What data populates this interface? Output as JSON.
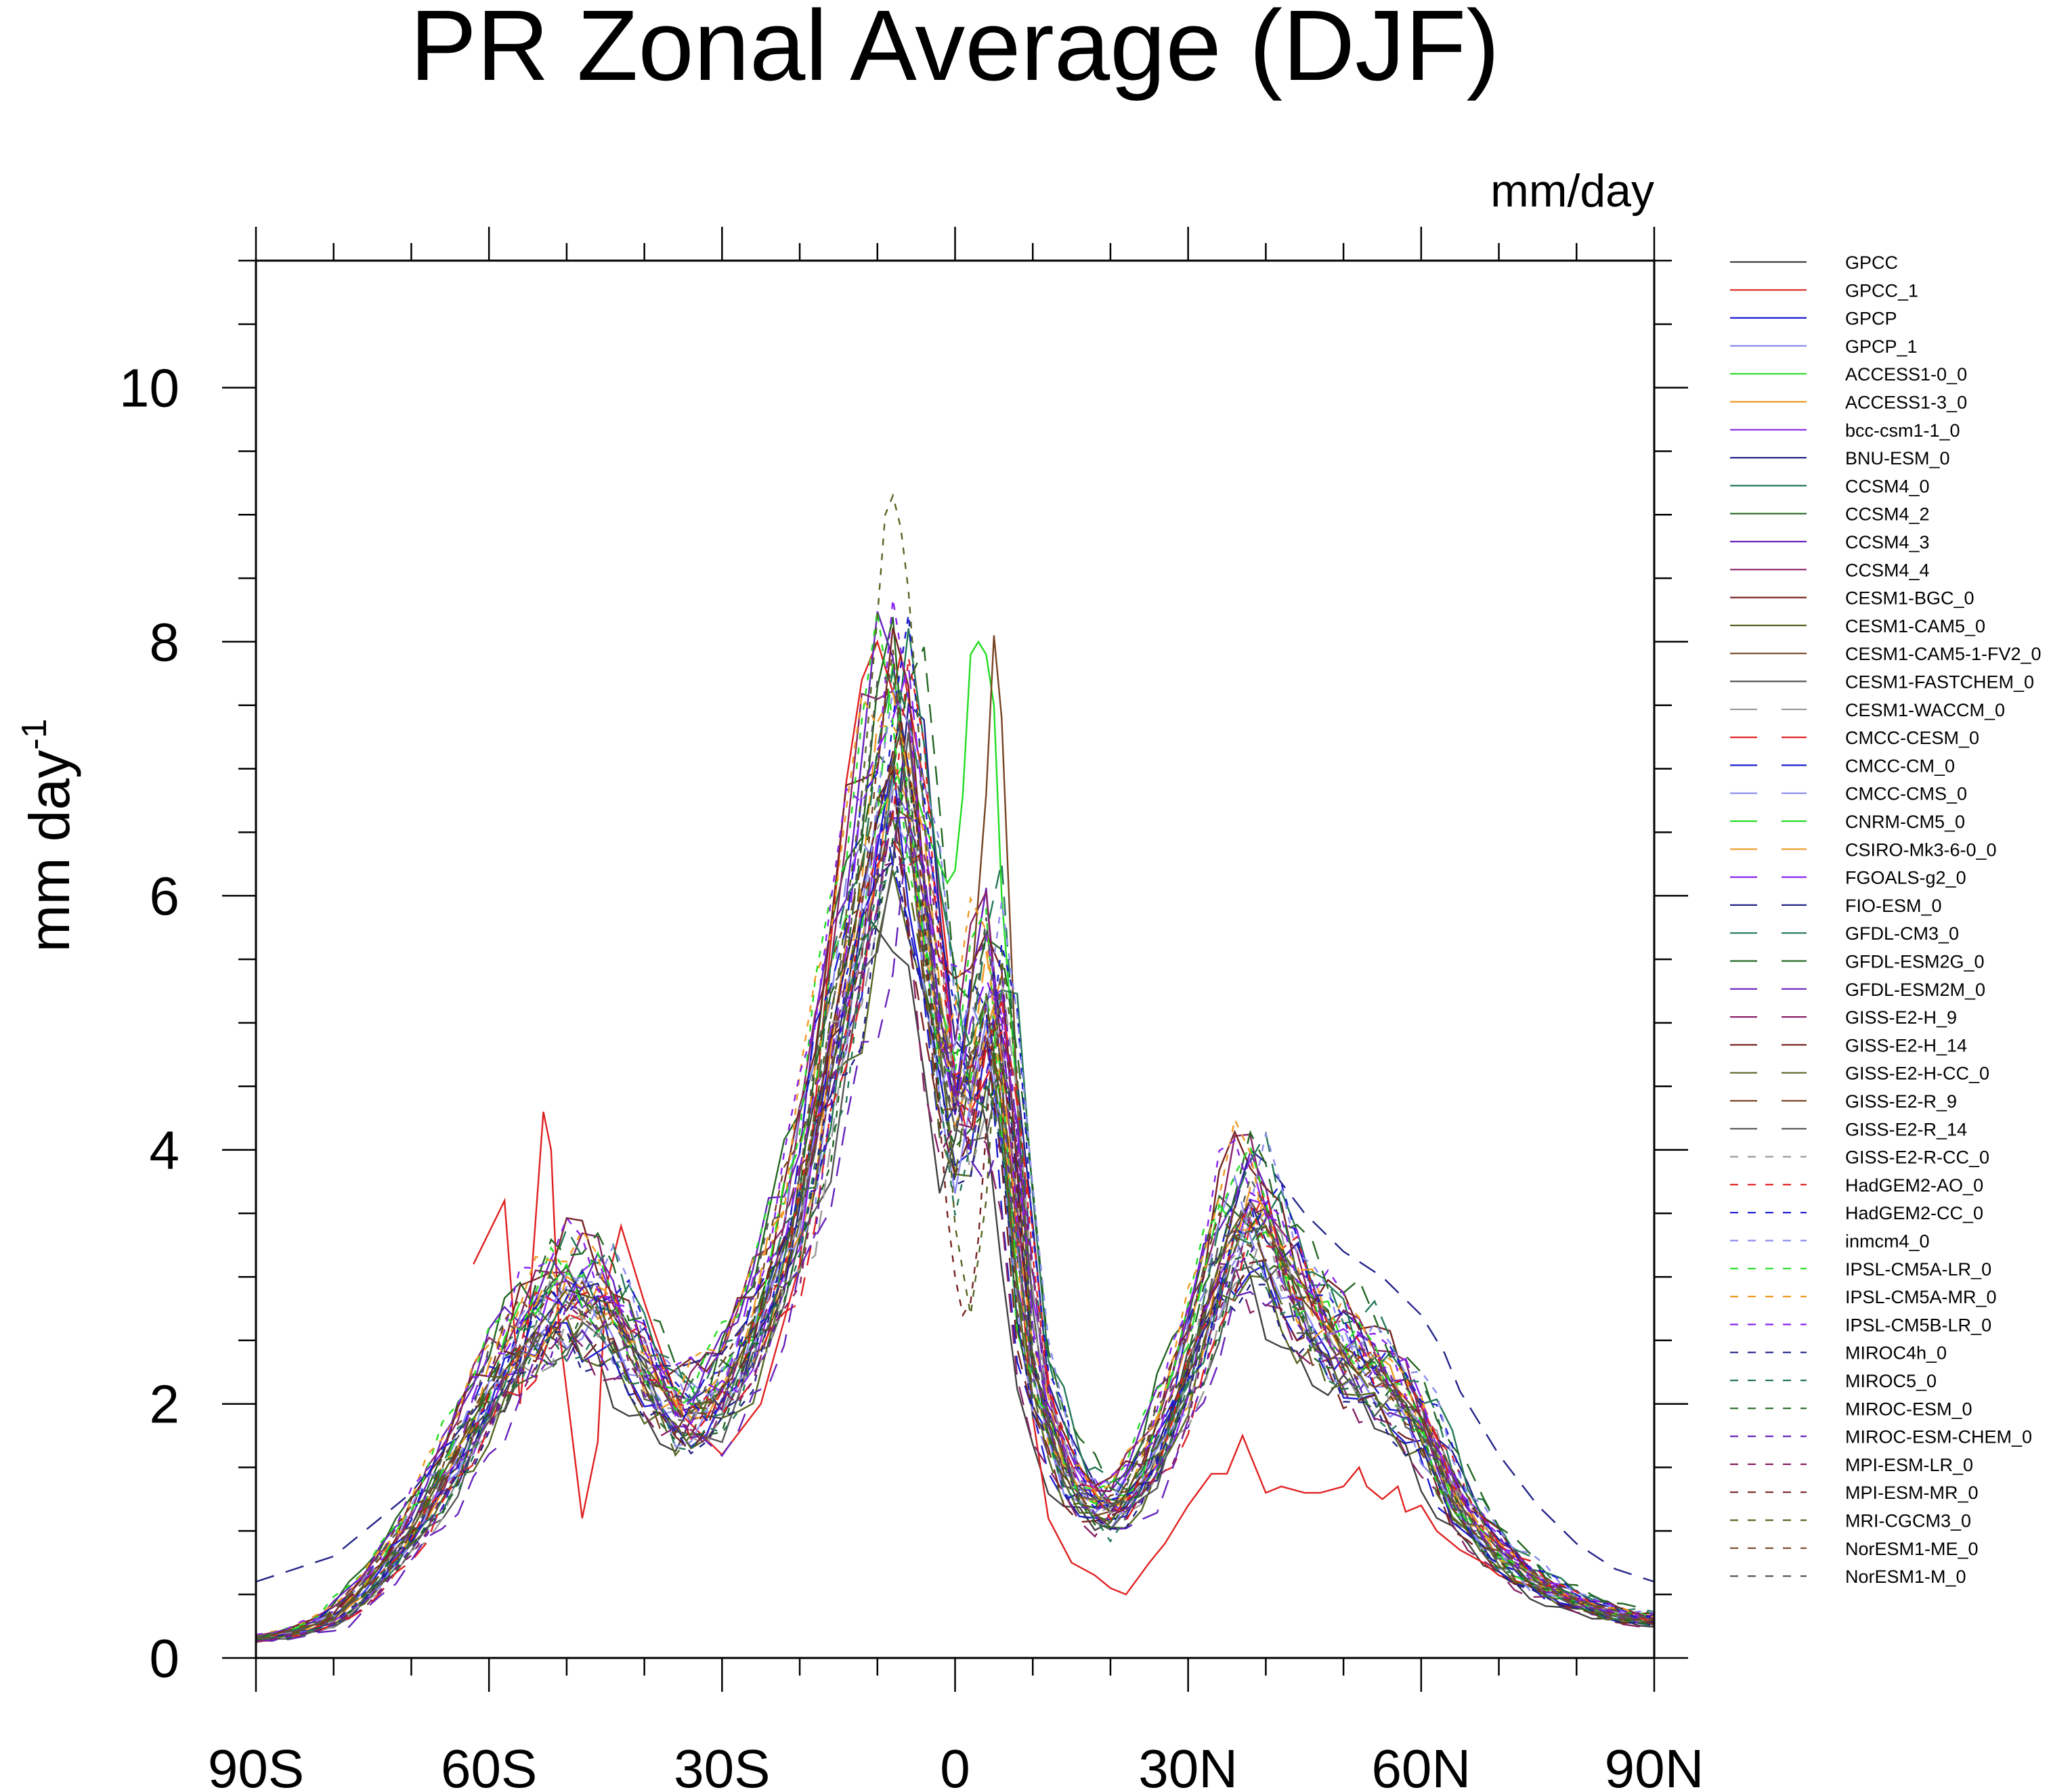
{
  "chart_data": {
    "type": "line",
    "title": "PR Zonal Average (DJF)",
    "units_label": "mm/day",
    "ylabel": "mm day",
    "ylabel_superscript": "-1",
    "xlabel": "",
    "xlim": [
      -90,
      90
    ],
    "ylim": [
      0,
      11
    ],
    "x_ticks": [
      {
        "value": -90,
        "label": "90S"
      },
      {
        "value": -60,
        "label": "60S"
      },
      {
        "value": -30,
        "label": "30S"
      },
      {
        "value": 0,
        "label": "0"
      },
      {
        "value": 30,
        "label": "30N"
      },
      {
        "value": 60,
        "label": "60N"
      },
      {
        "value": 90,
        "label": "90N"
      }
    ],
    "y_ticks": [
      {
        "value": 0,
        "label": "0"
      },
      {
        "value": 2,
        "label": "2"
      },
      {
        "value": 4,
        "label": "4"
      },
      {
        "value": 6,
        "label": "6"
      },
      {
        "value": 8,
        "label": "8"
      },
      {
        "value": 10,
        "label": "10"
      }
    ],
    "grid": false,
    "legend_position": "right",
    "base_profile": {
      "x": [
        -90,
        -85,
        -80,
        -75,
        -70,
        -65,
        -60,
        -55,
        -50,
        -45,
        -40,
        -35,
        -30,
        -25,
        -20,
        -15,
        -10,
        -7,
        -5,
        -2,
        0,
        2,
        5,
        7,
        10,
        15,
        20,
        25,
        30,
        35,
        38,
        40,
        45,
        50,
        55,
        60,
        65,
        70,
        75,
        80,
        85,
        90
      ],
      "y": [
        0.15,
        0.2,
        0.3,
        0.6,
        1.0,
        1.5,
        2.1,
        2.6,
        2.9,
        2.8,
        2.3,
        1.9,
        2.1,
        2.7,
        3.6,
        5.2,
        6.6,
        7.4,
        6.6,
        5.1,
        4.3,
        4.6,
        5.4,
        4.4,
        2.3,
        1.4,
        1.15,
        1.5,
        2.3,
        3.3,
        3.6,
        3.4,
        2.8,
        2.45,
        2.25,
        1.9,
        1.2,
        0.85,
        0.6,
        0.45,
        0.35,
        0.3
      ]
    },
    "series": [
      {
        "name": "GPCC",
        "color": "#404040",
        "dash": "solid",
        "variant": 0
      },
      {
        "name": "GPCC_1",
        "color": "#e02020",
        "dash": "solid",
        "variant": 1
      },
      {
        "name": "GPCP",
        "color": "#1a1ad0",
        "dash": "solid",
        "variant": 2
      },
      {
        "name": "GPCP_1",
        "color": "#8a8aee",
        "dash": "solid",
        "variant": 3
      },
      {
        "name": "ACCESS1-0_0",
        "color": "#22dd22",
        "dash": "solid",
        "variant": 4
      },
      {
        "name": "ACCESS1-3_0",
        "color": "#ee9922",
        "dash": "solid",
        "variant": 5
      },
      {
        "name": "bcc-csm1-1_0",
        "color": "#8822ee",
        "dash": "solid",
        "variant": 6
      },
      {
        "name": "BNU-ESM_0",
        "color": "#222288",
        "dash": "solid",
        "variant": 7
      },
      {
        "name": "CCSM4_0",
        "color": "#227755",
        "dash": "solid",
        "variant": 8
      },
      {
        "name": "CCSM4_2",
        "color": "#226622",
        "dash": "solid",
        "variant": 9
      },
      {
        "name": "CCSM4_3",
        "color": "#6622bb",
        "dash": "solid",
        "variant": 10
      },
      {
        "name": "CCSM4_4",
        "color": "#882266",
        "dash": "solid",
        "variant": 11
      },
      {
        "name": "CESM1-BGC_0",
        "color": "#772222",
        "dash": "solid",
        "variant": 12
      },
      {
        "name": "CESM1-CAM5_0",
        "color": "#556622",
        "dash": "solid",
        "variant": 13
      },
      {
        "name": "CESM1-CAM5-1-FV2_0",
        "color": "#774422",
        "dash": "solid",
        "variant": 14
      },
      {
        "name": "CESM1-FASTCHEM_0",
        "color": "#555555",
        "dash": "solid",
        "variant": 15
      },
      {
        "name": "CESM1-WACCM_0",
        "color": "#999999",
        "dash": "long",
        "variant": 16
      },
      {
        "name": "CMCC-CESM_0",
        "color": "#e02020",
        "dash": "long",
        "variant": 17
      },
      {
        "name": "CMCC-CM_0",
        "color": "#1a1ad0",
        "dash": "long",
        "variant": 18
      },
      {
        "name": "CMCC-CMS_0",
        "color": "#8a8aee",
        "dash": "long",
        "variant": 19
      },
      {
        "name": "CNRM-CM5_0",
        "color": "#22dd22",
        "dash": "long",
        "variant": 20
      },
      {
        "name": "CSIRO-Mk3-6-0_0",
        "color": "#ee9922",
        "dash": "long",
        "variant": 21
      },
      {
        "name": "FGOALS-g2_0",
        "color": "#8822ee",
        "dash": "long",
        "variant": 22
      },
      {
        "name": "FIO-ESM_0",
        "color": "#222288",
        "dash": "long",
        "variant": 23
      },
      {
        "name": "GFDL-CM3_0",
        "color": "#227755",
        "dash": "long",
        "variant": 24
      },
      {
        "name": "GFDL-ESM2G_0",
        "color": "#226622",
        "dash": "long",
        "variant": 25
      },
      {
        "name": "GFDL-ESM2M_0",
        "color": "#6622bb",
        "dash": "long",
        "variant": 26
      },
      {
        "name": "GISS-E2-H_9",
        "color": "#882266",
        "dash": "long",
        "variant": 27
      },
      {
        "name": "GISS-E2-H_14",
        "color": "#772222",
        "dash": "long",
        "variant": 28
      },
      {
        "name": "GISS-E2-H-CC_0",
        "color": "#556622",
        "dash": "long",
        "variant": 29
      },
      {
        "name": "GISS-E2-R_9",
        "color": "#774422",
        "dash": "long",
        "variant": 30
      },
      {
        "name": "GISS-E2-R_14",
        "color": "#555555",
        "dash": "long",
        "variant": 31
      },
      {
        "name": "GISS-E2-R-CC_0",
        "color": "#999999",
        "dash": "short",
        "variant": 32
      },
      {
        "name": "HadGEM2-AO_0",
        "color": "#e02020",
        "dash": "short",
        "variant": 33
      },
      {
        "name": "HadGEM2-CC_0",
        "color": "#1a1ad0",
        "dash": "short",
        "variant": 34
      },
      {
        "name": "inmcm4_0",
        "color": "#8a8aee",
        "dash": "short",
        "variant": 35
      },
      {
        "name": "IPSL-CM5A-LR_0",
        "color": "#22dd22",
        "dash": "short",
        "variant": 36
      },
      {
        "name": "IPSL-CM5A-MR_0",
        "color": "#ee9922",
        "dash": "short",
        "variant": 37
      },
      {
        "name": "IPSL-CM5B-LR_0",
        "color": "#8822ee",
        "dash": "short",
        "variant": 38
      },
      {
        "name": "MIROC4h_0",
        "color": "#222288",
        "dash": "short",
        "variant": 39
      },
      {
        "name": "MIROC5_0",
        "color": "#227755",
        "dash": "short",
        "variant": 40
      },
      {
        "name": "MIROC-ESM_0",
        "color": "#226622",
        "dash": "short",
        "variant": 41
      },
      {
        "name": "MIROC-ESM-CHEM_0",
        "color": "#6622bb",
        "dash": "short",
        "variant": 42
      },
      {
        "name": "MPI-ESM-LR_0",
        "color": "#882266",
        "dash": "short",
        "variant": 43
      },
      {
        "name": "MPI-ESM-MR_0",
        "color": "#772222",
        "dash": "short",
        "variant": 44
      },
      {
        "name": "MRI-CGCM3_0",
        "color": "#556622",
        "dash": "short",
        "variant": 45
      },
      {
        "name": "NorESM1-ME_0",
        "color": "#774422",
        "dash": "short",
        "variant": 46
      },
      {
        "name": "NorESM1-M_0",
        "color": "#555555",
        "dash": "short",
        "variant": 47
      }
    ],
    "special_series": {
      "GPCC_1": {
        "x": [
          -62,
          -58,
          -56,
          -55,
          -53,
          -52,
          -51,
          -49,
          -48,
          -46,
          -45,
          -43,
          -40,
          -35,
          -30,
          -25,
          -20,
          -17,
          -14,
          -12,
          -10,
          -8,
          -7,
          -5,
          -3,
          -1,
          0,
          2,
          5,
          7,
          10,
          12,
          15,
          18,
          20,
          22,
          25,
          27,
          30,
          33,
          35,
          36,
          37,
          38,
          39,
          40,
          42,
          45,
          47,
          50,
          52,
          53,
          55,
          57,
          58,
          60,
          62,
          65,
          68,
          70,
          75,
          80,
          85,
          90
        ],
        "y": [
          3.1,
          3.6,
          2.0,
          2.6,
          4.3,
          4.0,
          2.6,
          1.6,
          1.1,
          1.7,
          2.9,
          3.4,
          2.8,
          1.9,
          1.6,
          2.0,
          3.1,
          5.0,
          6.9,
          7.7,
          8.0,
          7.6,
          7.9,
          7.2,
          6.6,
          5.5,
          4.4,
          4.3,
          4.7,
          4.0,
          1.9,
          1.1,
          0.75,
          0.65,
          0.55,
          0.5,
          0.75,
          0.9,
          1.2,
          1.45,
          1.45,
          1.6,
          1.75,
          1.6,
          1.45,
          1.3,
          1.35,
          1.3,
          1.3,
          1.35,
          1.5,
          1.35,
          1.25,
          1.35,
          1.15,
          1.2,
          1.0,
          0.85,
          0.75,
          0.65,
          0.55,
          0.45,
          0.35,
          0.3
        ]
      },
      "MRI-CGCM3_0": {
        "x": [
          -90,
          -80,
          -70,
          -60,
          -50,
          -45,
          -40,
          -35,
          -30,
          -25,
          -20,
          -15,
          -12,
          -10,
          -9,
          -8,
          -7,
          -6,
          -5,
          -4,
          -2,
          0,
          2,
          4,
          6,
          8,
          10,
          15,
          20,
          30,
          35,
          40,
          50,
          60,
          70,
          80,
          90
        ],
        "y": [
          0.15,
          0.3,
          1.0,
          2.1,
          2.9,
          2.8,
          2.3,
          1.9,
          2.1,
          2.7,
          3.6,
          5.4,
          6.8,
          8.2,
          9.0,
          9.15,
          8.9,
          8.4,
          7.6,
          6.6,
          5.2,
          3.4,
          2.7,
          3.6,
          5.5,
          4.6,
          2.3,
          1.4,
          1.15,
          2.3,
          3.3,
          3.4,
          2.45,
          1.9,
          0.85,
          0.45,
          0.3
        ]
      },
      "FIO-ESM_0": {
        "x": [
          -90,
          -80,
          -70,
          -60,
          -50,
          -45,
          -40,
          -35,
          -30,
          -25,
          -20,
          -15,
          -10,
          -7,
          -5,
          -2,
          0,
          2,
          5,
          7,
          10,
          15,
          20,
          25,
          30,
          35,
          38,
          40,
          45,
          50,
          55,
          60,
          63,
          65,
          70,
          75,
          80,
          85,
          90
        ],
        "y": [
          0.6,
          0.8,
          1.3,
          2.1,
          2.9,
          2.8,
          2.3,
          2.3,
          2.4,
          2.8,
          3.6,
          5.2,
          6.6,
          7.4,
          6.6,
          5.1,
          4.3,
          4.6,
          5.4,
          4.4,
          2.3,
          1.4,
          1.15,
          1.5,
          2.3,
          3.3,
          4.0,
          3.9,
          3.5,
          3.2,
          3.0,
          2.7,
          2.4,
          2.1,
          1.6,
          1.2,
          0.9,
          0.7,
          0.6
        ]
      },
      "CESM1-CAM5-1-FV2_0": {
        "x": [
          -90,
          -80,
          -70,
          -60,
          -50,
          -45,
          -40,
          -35,
          -30,
          -25,
          -20,
          -15,
          -10,
          -7,
          -5,
          -2,
          0,
          2,
          4,
          5,
          6,
          8,
          10,
          15,
          20,
          25,
          30,
          35,
          38,
          40,
          45,
          50,
          55,
          60,
          65,
          70,
          75,
          80,
          85,
          90
        ],
        "y": [
          0.15,
          0.3,
          1.0,
          2.1,
          2.9,
          2.8,
          2.3,
          1.9,
          2.1,
          2.7,
          3.6,
          5.2,
          6.6,
          7.3,
          6.6,
          5.1,
          4.3,
          5.2,
          6.8,
          8.05,
          7.4,
          4.4,
          2.3,
          1.4,
          1.15,
          1.5,
          2.3,
          3.3,
          3.6,
          3.4,
          2.8,
          2.45,
          2.25,
          1.9,
          1.2,
          0.85,
          0.6,
          0.45,
          0.35,
          0.3
        ]
      },
      "ACCESS1-0_0": {
        "x": [
          -90,
          -80,
          -70,
          -60,
          -50,
          -45,
          -40,
          -35,
          -30,
          -25,
          -20,
          -15,
          -10,
          -7,
          -5,
          -3,
          -1,
          0,
          1,
          2,
          3,
          4,
          5,
          6,
          8,
          10,
          15,
          20,
          25,
          30,
          35,
          38,
          40,
          45,
          50,
          55,
          60,
          65,
          70,
          75,
          80,
          85,
          90
        ],
        "y": [
          0.15,
          0.3,
          1.0,
          2.1,
          2.9,
          2.8,
          2.3,
          1.9,
          2.1,
          2.7,
          3.6,
          5.2,
          6.6,
          7.0,
          6.8,
          6.4,
          6.1,
          6.2,
          6.8,
          7.9,
          8.0,
          7.9,
          7.5,
          6.0,
          4.4,
          2.3,
          1.4,
          1.15,
          1.5,
          2.3,
          3.3,
          3.6,
          3.4,
          2.8,
          2.45,
          2.25,
          1.9,
          1.2,
          0.85,
          0.6,
          0.45,
          0.35,
          0.3
        ]
      },
      "MPI-ESM-MR_0": {
        "x": [
          -90,
          -80,
          -70,
          -60,
          -50,
          -45,
          -40,
          -35,
          -30,
          -25,
          -20,
          -15,
          -10,
          -7,
          -5,
          -3,
          -1,
          0,
          1,
          2,
          3,
          5,
          7,
          10,
          15,
          20,
          30,
          35,
          40,
          50,
          60,
          70,
          80,
          90
        ],
        "y": [
          0.15,
          0.3,
          1.0,
          2.1,
          2.9,
          2.8,
          2.3,
          1.9,
          2.1,
          2.7,
          3.6,
          5.2,
          6.6,
          7.4,
          6.6,
          5.0,
          3.5,
          3.0,
          2.7,
          2.8,
          3.3,
          5.0,
          4.3,
          2.3,
          1.4,
          1.15,
          2.3,
          3.3,
          3.4,
          2.45,
          1.9,
          0.85,
          0.45,
          0.3
        ]
      }
    }
  }
}
